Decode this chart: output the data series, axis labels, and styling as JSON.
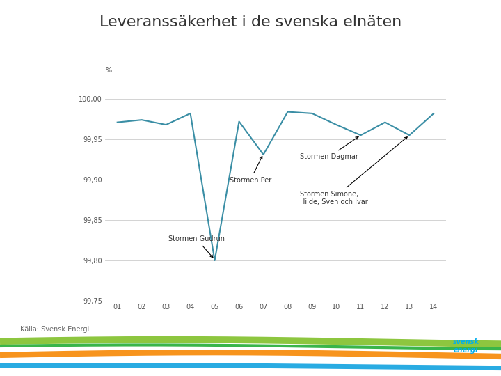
{
  "title": "Leveranssäkerhet i de svenska elnäten",
  "xlabel_label": "%",
  "source_label": "Källa: Svensk Energi",
  "x_labels": [
    "01",
    "02",
    "03",
    "04",
    "05",
    "06",
    "07",
    "08",
    "09",
    "10",
    "11",
    "12",
    "13",
    "14"
  ],
  "x_values": [
    1,
    2,
    3,
    4,
    5,
    6,
    7,
    8,
    9,
    10,
    11,
    12,
    13,
    14
  ],
  "y_values": [
    99.971,
    99.974,
    99.968,
    99.982,
    99.8,
    99.972,
    99.931,
    99.984,
    99.982,
    99.968,
    99.955,
    99.971,
    99.955,
    99.982
  ],
  "ylim": [
    99.75,
    100.02
  ],
  "yticks": [
    99.75,
    99.8,
    99.85,
    99.9,
    99.95,
    100.0
  ],
  "ytick_labels": [
    "99,75",
    "99,80",
    "99,85",
    "99,90",
    "99,95",
    "100,00"
  ],
  "line_color": "#3a8ea5",
  "line_width": 1.5,
  "background_color": "#ffffff",
  "title_color": "#333333",
  "title_fontsize": 16,
  "axis_label_fontsize": 7,
  "tick_fontsize": 7,
  "source_fontsize": 7,
  "ann_fontsize": 7,
  "footer_colors": [
    "#8dc63f",
    "#f7941d",
    "#29abe2",
    "#39b54a"
  ],
  "logo_color": "#00aeef"
}
